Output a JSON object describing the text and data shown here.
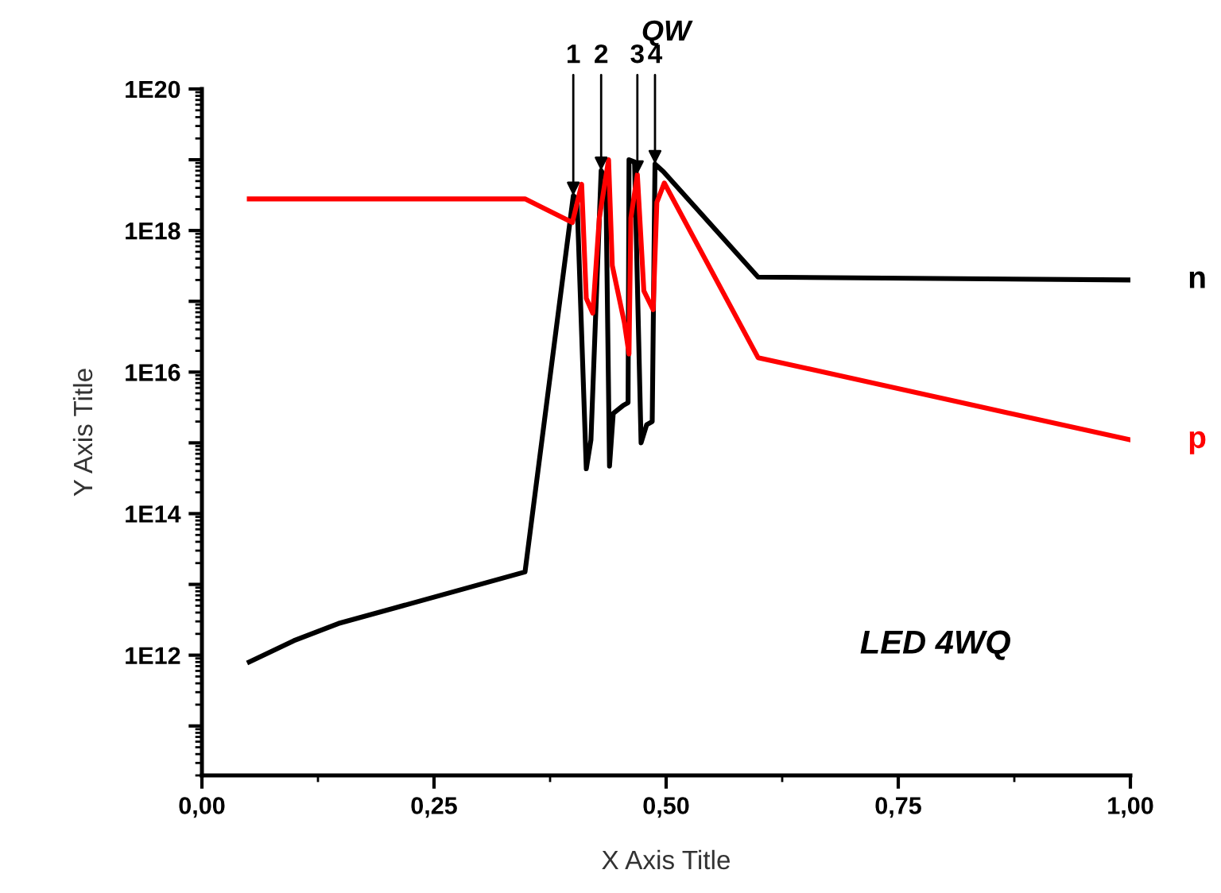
{
  "chart_data": {
    "type": "line",
    "title": "QW",
    "xlabel": "X Axis Title",
    "ylabel": "Y Axis Title",
    "log": "y",
    "grid": false,
    "legend": false,
    "marker": "none",
    "line_style": "solid",
    "xlim": [
      0,
      1
    ],
    "xticks": [
      {
        "value": 0,
        "label": "0,00"
      },
      {
        "value": 0.25,
        "label": "0,25"
      },
      {
        "value": 0.5,
        "label": "0,50"
      },
      {
        "value": 0.75,
        "label": "0,75"
      },
      {
        "value": 1,
        "label": "1,00"
      }
    ],
    "ylim": [
      20000000000.0,
      1e+20
    ],
    "yticks": [
      {
        "value": 100000000000.0,
        "label": null
      },
      {
        "value": 1000000000000.0,
        "label": "1E12"
      },
      {
        "value": 10000000000000.0,
        "label": null
      },
      {
        "value": 100000000000000.0,
        "label": "1E14"
      },
      {
        "value": 1000000000000000.0,
        "label": null
      },
      {
        "value": 1e+16,
        "label": "1E16"
      },
      {
        "value": 1e+17,
        "label": null
      },
      {
        "value": 1e+18,
        "label": "1E18"
      },
      {
        "value": 1e+19,
        "label": null
      },
      {
        "value": 1e+20,
        "label": "1E20"
      }
    ],
    "series": [
      {
        "name": "n",
        "color": "#000000",
        "x": [
          0.051,
          0.099,
          0.147,
          0.348,
          0.4,
          0.404,
          0.414,
          0.419,
          0.43,
          0.435,
          0.439,
          0.443,
          0.454,
          0.459,
          0.46,
          0.466,
          0.473,
          0.479,
          0.485,
          0.488,
          0.497,
          0.599,
          1.0
        ],
        "values": [
          800000000000.0,
          1600000000000.0,
          2800000000000.0,
          15000000000000.0,
          3.1e+18,
          2.8e+18,
          430000000000000.0,
          1100000000000000.0,
          7e+18,
          5.5e+18,
          470000000000000.0,
          2600000000000000.0,
          3400000000000000.0,
          3700000000000000.0,
          1e+19,
          9.3e+18,
          1000000000000000.0,
          1800000000000000.0,
          2000000000000000.0,
          8.7e+18,
          6.8e+18,
          2.2e+17,
          2e+17
        ]
      },
      {
        "name": "p",
        "color": "#ff0000",
        "x": [
          0.051,
          0.348,
          0.399,
          0.409,
          0.414,
          0.421,
          0.428,
          0.438,
          0.442,
          0.455,
          0.46,
          0.462,
          0.469,
          0.476,
          0.486,
          0.49,
          0.498,
          0.599,
          1.0
        ],
        "values": [
          2.8e+18,
          2.8e+18,
          1.3e+18,
          4.5e+18,
          1.1e+17,
          6.8e+16,
          1.5e+18,
          1e+19,
          3.2e+17,
          5e+16,
          1.8e+16,
          1.5e+18,
          6.2e+18,
          1.4e+17,
          7.6e+16,
          2.5e+18,
          4.7e+18,
          1.6e+16,
          1100000000000000.0
        ]
      }
    ],
    "annotations": [
      {
        "text": "1",
        "x": 0.4,
        "y": 3.1e+18
      },
      {
        "text": "2",
        "x": 0.43,
        "y": 7e+18
      },
      {
        "text": "3",
        "x": 0.469,
        "y": 6.2e+18
      },
      {
        "text": "4",
        "x": 0.488,
        "y": 8.7e+18
      },
      "LED 4WQ"
    ]
  }
}
